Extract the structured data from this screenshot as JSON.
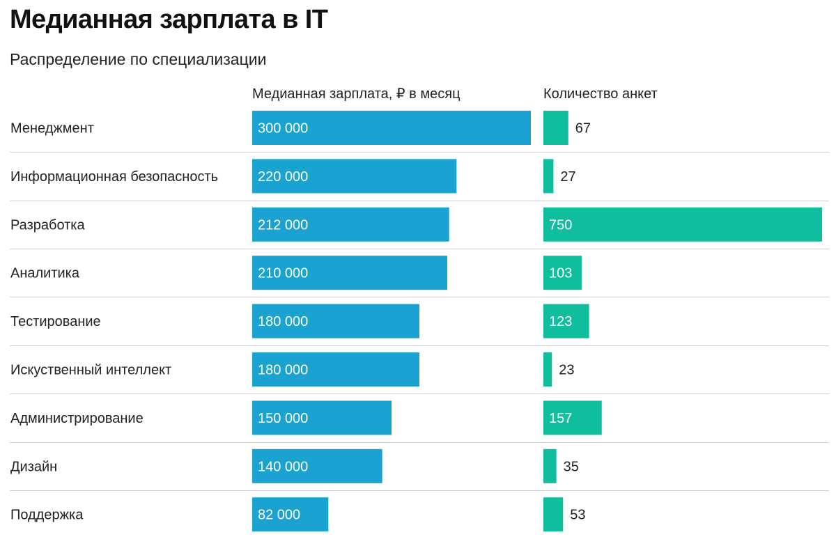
{
  "title": "Медианная зарплата в IT",
  "subtitle": "Распределение по специализации",
  "colors": {
    "salary_bar": "#1aa3d1",
    "count_bar": "#10bd9d",
    "divider": "#cfcfcf",
    "inside_text": "#ffffff",
    "outside_text": "#222222"
  },
  "chart_data": {
    "type": "bar",
    "orientation": "horizontal",
    "categories": [
      "Менеджмент",
      "Информационная безопасность",
      "Разработка",
      "Аналитика",
      "Тестирование",
      "Искуственный интеллект",
      "Администрирование",
      "Дизайн",
      "Поддержка"
    ],
    "series": [
      {
        "name": "Медианная зарплата, ₽ в месяц",
        "values": [
          300000,
          220000,
          212000,
          210000,
          180000,
          180000,
          150000,
          140000,
          82000
        ],
        "labels": [
          "300 000",
          "220 000",
          "212 000",
          "210 000",
          "180 000",
          "180 000",
          "150 000",
          "140 000",
          "82 000"
        ],
        "xlim": [
          0,
          300000
        ]
      },
      {
        "name": "Количество анкет",
        "values": [
          67,
          27,
          750,
          103,
          123,
          23,
          157,
          35,
          53
        ],
        "labels": [
          "67",
          "27",
          "750",
          "103",
          "123",
          "23",
          "157",
          "35",
          "53"
        ],
        "xlim": [
          0,
          750
        ]
      }
    ],
    "grid": false,
    "legend": "column headers"
  }
}
